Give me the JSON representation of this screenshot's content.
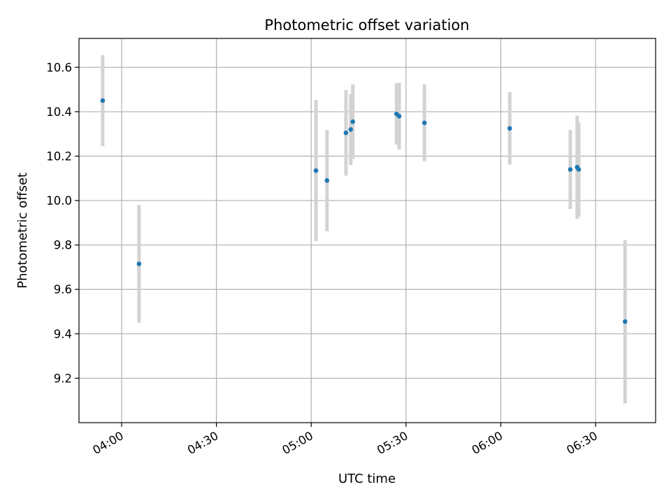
{
  "chart_data": {
    "type": "scatter",
    "title": "Photometric offset variation",
    "xlabel": "UTC time",
    "ylabel": "Photometric offset",
    "x_ticks": [
      "04:00",
      "04:30",
      "05:00",
      "05:30",
      "06:00",
      "06:30"
    ],
    "y_ticks": [
      "9.2",
      "9.4",
      "9.6",
      "9.8",
      "10.0",
      "10.2",
      "10.4",
      "10.6"
    ],
    "xlim": [
      "03:46:30",
      "06:49:00"
    ],
    "ylim": [
      9.0,
      10.73
    ],
    "grid": true,
    "colors": {
      "point": "#1f77b4",
      "errorbar": "#d3d3d3",
      "grid": "#b0b0b0"
    },
    "points": [
      {
        "x": "03:54:00",
        "y": 10.45,
        "err": 0.205
      },
      {
        "x": "04:05:30",
        "y": 9.715,
        "err": 0.265
      },
      {
        "x": "05:01:30",
        "y": 10.135,
        "err": 0.318
      },
      {
        "x": "05:05:00",
        "y": 10.09,
        "err": 0.228
      },
      {
        "x": "05:11:00",
        "y": 10.305,
        "err": 0.193
      },
      {
        "x": "05:12:30",
        "y": 10.32,
        "err": 0.16
      },
      {
        "x": "05:13:10",
        "y": 10.355,
        "err": 0.168
      },
      {
        "x": "05:27:00",
        "y": 10.39,
        "err": 0.138
      },
      {
        "x": "05:27:50",
        "y": 10.38,
        "err": 0.15
      },
      {
        "x": "05:35:50",
        "y": 10.35,
        "err": 0.173
      },
      {
        "x": "06:02:50",
        "y": 10.325,
        "err": 0.163
      },
      {
        "x": "06:22:00",
        "y": 10.14,
        "err": 0.178
      },
      {
        "x": "06:24:10",
        "y": 10.15,
        "err": 0.232
      },
      {
        "x": "06:24:40",
        "y": 10.14,
        "err": 0.212
      },
      {
        "x": "06:39:20",
        "y": 9.455,
        "err": 0.368
      }
    ]
  }
}
